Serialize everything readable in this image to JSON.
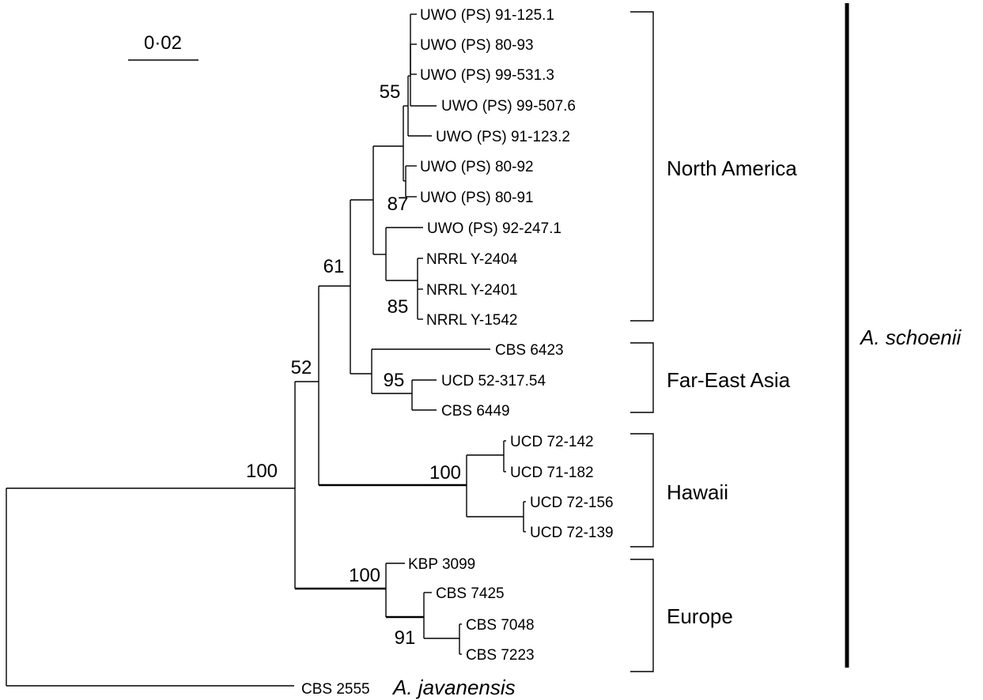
{
  "scale_bar": {
    "label": "0·02"
  },
  "leaves": {
    "l1": "UWO (PS) 91-125.1",
    "l2": "UWO (PS) 80-93",
    "l3": "UWO (PS) 99-531.3",
    "l4": "UWO (PS) 99-507.6",
    "l5": "UWO (PS) 91-123.2",
    "l6": "UWO (PS) 80-92",
    "l7": "UWO (PS) 80-91",
    "l8": "UWO (PS) 92-247.1",
    "l9": "NRRL Y-2404",
    "l10": "NRRL Y-2401",
    "l11": "NRRL Y-1542",
    "l12": "CBS 6423",
    "l13": "UCD 52-317.54",
    "l14": "CBS 6449",
    "l15": "UCD 72-142",
    "l16": "UCD 71-182",
    "l17": "UCD 72-156",
    "l18": "UCD 72-139",
    "l19": "KBP 3099",
    "l20": "CBS 7425",
    "l21": "CBS 7048",
    "l22": "CBS 7223",
    "outgroup_strain": "CBS 2555",
    "outgroup_species": "A. javanensis"
  },
  "bootstrap": {
    "b55": "55",
    "b87": "87",
    "b61": "61",
    "b85": "85",
    "b52": "52",
    "b95": "95",
    "b100_root": "100",
    "b100_hawaii": "100",
    "b100_europe": "100",
    "b91": "91"
  },
  "groups": {
    "north_america": "North America",
    "far_east_asia": "Far-East Asia",
    "hawaii": "Hawaii",
    "europe": "Europe"
  },
  "species": "A. schoenii"
}
